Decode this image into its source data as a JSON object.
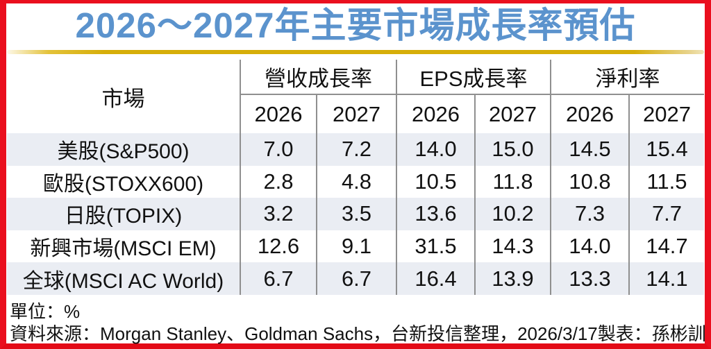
{
  "title": "2026～2027年主要市場成長率預估",
  "colors": {
    "frame_red": "#ea0f1e",
    "title_blue": "#5b93cd",
    "gold_line": "#d6ae09",
    "row_stripe": "#eaedf3",
    "grid_line": "#8f8f8f"
  },
  "footer": {
    "unit": "單位：%",
    "source": "資料來源：Morgan Stanley、Goldman Sachs，台新投信整理，2026/3/17",
    "credit": "製表：孫彬訓"
  },
  "chart_data": {
    "type": "table",
    "title": "2026～2027年主要市場成長率預估",
    "unit": "%",
    "row_header": "市場",
    "column_groups": [
      {
        "label": "營收成長率",
        "years": [
          "2026",
          "2027"
        ]
      },
      {
        "label": "EPS成長率",
        "years": [
          "2026",
          "2027"
        ]
      },
      {
        "label": "淨利率",
        "years": [
          "2026",
          "2027"
        ]
      }
    ],
    "year_headers": [
      "2026",
      "2027",
      "2026",
      "2027",
      "2026",
      "2027"
    ],
    "rows": [
      {
        "market": "美股(S&P500)",
        "values": [
          "7.0",
          "7.2",
          "14.0",
          "15.0",
          "14.5",
          "15.4"
        ]
      },
      {
        "market": "歐股(STOXX600)",
        "values": [
          "2.8",
          "4.8",
          "10.5",
          "11.8",
          "10.8",
          "11.5"
        ]
      },
      {
        "market": "日股(TOPIX)",
        "values": [
          "3.2",
          "3.5",
          "13.6",
          "10.2",
          "7.3",
          "7.7"
        ]
      },
      {
        "market": "新興市場(MSCI EM)",
        "values": [
          "12.6",
          "9.1",
          "31.5",
          "14.3",
          "14.0",
          "14.7"
        ]
      },
      {
        "market": "全球(MSCI AC World)",
        "values": [
          "6.7",
          "6.7",
          "16.4",
          "13.9",
          "13.3",
          "14.1"
        ]
      }
    ]
  }
}
